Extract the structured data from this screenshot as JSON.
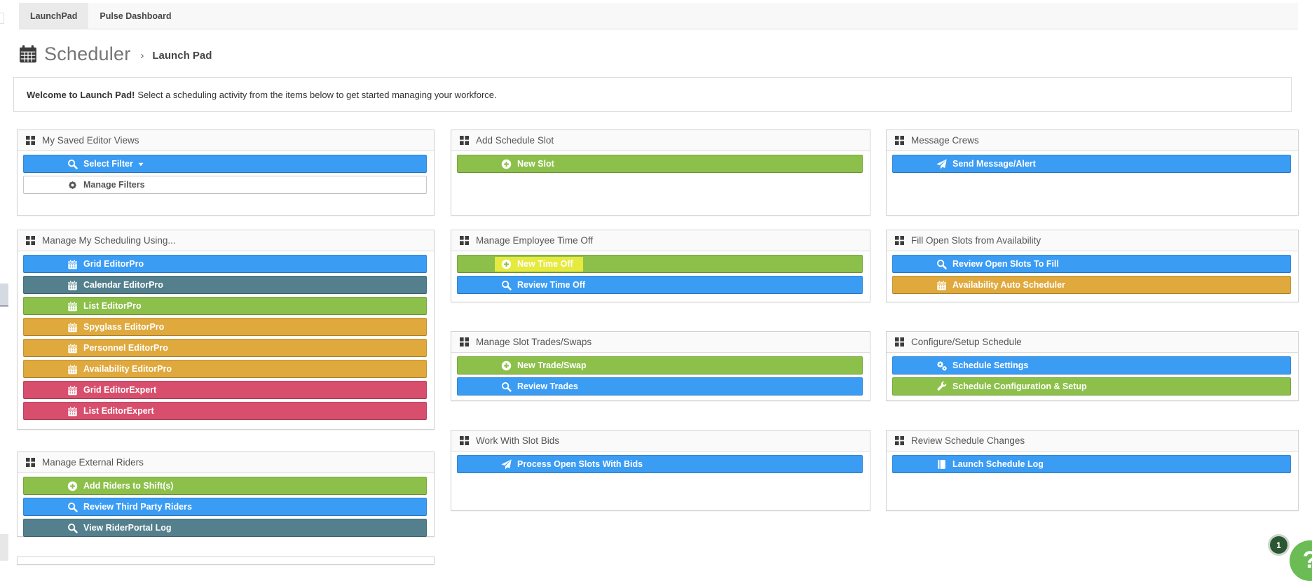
{
  "tabs": [
    {
      "label": "LaunchPad",
      "active": true
    },
    {
      "label": "Pulse Dashboard",
      "active": false
    }
  ],
  "header": {
    "title": "Scheduler",
    "separator": "›",
    "breadcrumb": "Launch Pad"
  },
  "welcome": {
    "bold": "Welcome to Launch Pad!",
    "text": "Select a scheduling activity from the items below to get started managing your workforce."
  },
  "colors": {
    "blue": "#3b9cf4",
    "green": "#8cc04a",
    "slate": "#54808d",
    "orange": "#dfa93e",
    "red": "#d84f6e",
    "white": "#ffffff",
    "highlight": "#e6e93e",
    "header_icon": "#3c3c3c"
  },
  "panels": [
    {
      "title": "My Saved Editor Views",
      "buttons": [
        {
          "label": "Select Filter",
          "icon": "search-icon",
          "color": "blue",
          "caret": true
        },
        {
          "label": "Manage Filters",
          "icon": "gear-icon",
          "color": "white"
        }
      ]
    },
    {
      "title": "Manage My Scheduling Using...",
      "buttons": [
        {
          "label": "Grid EditorPro",
          "icon": "calendar-icon",
          "color": "blue"
        },
        {
          "label": "Calendar EditorPro",
          "icon": "calendar-icon",
          "color": "slate"
        },
        {
          "label": "List EditorPro",
          "icon": "calendar-icon",
          "color": "green"
        },
        {
          "label": "Spyglass EditorPro",
          "icon": "calendar-icon",
          "color": "orange"
        },
        {
          "label": "Personnel EditorPro",
          "icon": "calendar-icon",
          "color": "orange"
        },
        {
          "label": "Availability EditorPro",
          "icon": "calendar-icon",
          "color": "orange"
        },
        {
          "label": "Grid EditorExpert",
          "icon": "calendar-icon",
          "color": "red"
        },
        {
          "label": "List EditorExpert",
          "icon": "calendar-icon",
          "color": "red"
        }
      ]
    },
    {
      "title": "Manage External Riders",
      "buttons": [
        {
          "label": "Add Riders to Shift(s)",
          "icon": "plus-circle-icon",
          "color": "green"
        },
        {
          "label": "Review Third Party Riders",
          "icon": "search-icon",
          "color": "blue"
        },
        {
          "label": "View RiderPortal Log",
          "icon": "search-icon",
          "color": "slate"
        }
      ]
    },
    {
      "title": "Add Schedule Slot",
      "buttons": [
        {
          "label": "New Slot",
          "icon": "plus-circle-icon",
          "color": "green"
        }
      ]
    },
    {
      "title": "Manage Employee Time Off",
      "buttons": [
        {
          "label": "New Time Off",
          "icon": "plus-circle-icon",
          "color": "green",
          "highlighted": true
        },
        {
          "label": "Review Time Off",
          "icon": "search-icon",
          "color": "blue"
        }
      ]
    },
    {
      "title": "Manage Slot Trades/Swaps",
      "buttons": [
        {
          "label": "New Trade/Swap",
          "icon": "plus-circle-icon",
          "color": "green"
        },
        {
          "label": "Review Trades",
          "icon": "search-icon",
          "color": "blue"
        }
      ]
    },
    {
      "title": "Work With Slot Bids",
      "buttons": [
        {
          "label": "Process Open Slots With Bids",
          "icon": "paper-plane-icon",
          "color": "blue"
        }
      ]
    },
    {
      "title": "Message Crews",
      "buttons": [
        {
          "label": "Send Message/Alert",
          "icon": "paper-plane-icon",
          "color": "blue"
        }
      ]
    },
    {
      "title": "Fill Open Slots from Availability",
      "buttons": [
        {
          "label": "Review Open Slots To Fill",
          "icon": "search-icon",
          "color": "blue"
        },
        {
          "label": "Availability Auto Scheduler",
          "icon": "calendar-icon",
          "color": "orange"
        }
      ]
    },
    {
      "title": "Configure/Setup Schedule",
      "buttons": [
        {
          "label": "Schedule Settings",
          "icon": "gears-icon",
          "color": "blue"
        },
        {
          "label": "Schedule Configuration & Setup",
          "icon": "wrench-icon",
          "color": "green"
        }
      ]
    },
    {
      "title": "Review Schedule Changes",
      "buttons": [
        {
          "label": "Launch Schedule Log",
          "icon": "book-icon",
          "color": "blue"
        }
      ]
    }
  ],
  "help_widget": {
    "badge_count": "1",
    "question_mark": "?"
  }
}
